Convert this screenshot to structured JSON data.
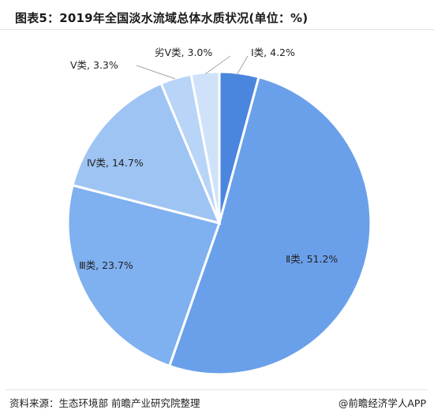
{
  "header": {
    "title": "图表5：2019年全国淡水流域总体水质状况(单位：%)"
  },
  "chart_data": {
    "type": "pie",
    "unit": "%",
    "slices": [
      {
        "name": "Ⅰ类",
        "value": 4.2,
        "color": "#4a86de"
      },
      {
        "name": "Ⅱ类",
        "value": 51.2,
        "color": "#6aa0ea"
      },
      {
        "name": "Ⅲ类",
        "value": 23.7,
        "color": "#7fb0ef"
      },
      {
        "name": "Ⅳ类",
        "value": 14.7,
        "color": "#9ec4f3"
      },
      {
        "name": "Ⅴ类",
        "value": 3.3,
        "color": "#b8d4f6"
      },
      {
        "name": "劣Ⅴ类",
        "value": 3.0,
        "color": "#cfe2fa"
      }
    ],
    "labels": [
      "Ⅰ类, 4.2%",
      "Ⅱ类, 51.2%",
      "Ⅲ类, 23.7%",
      "Ⅳ类, 14.7%",
      "Ⅴ类, 3.3%",
      "劣Ⅴ类, 3.0%"
    ]
  },
  "footer": {
    "source": "资料来源：生态环境部 前瞻产业研究院整理",
    "brand": "@前瞻经济学人APP"
  }
}
